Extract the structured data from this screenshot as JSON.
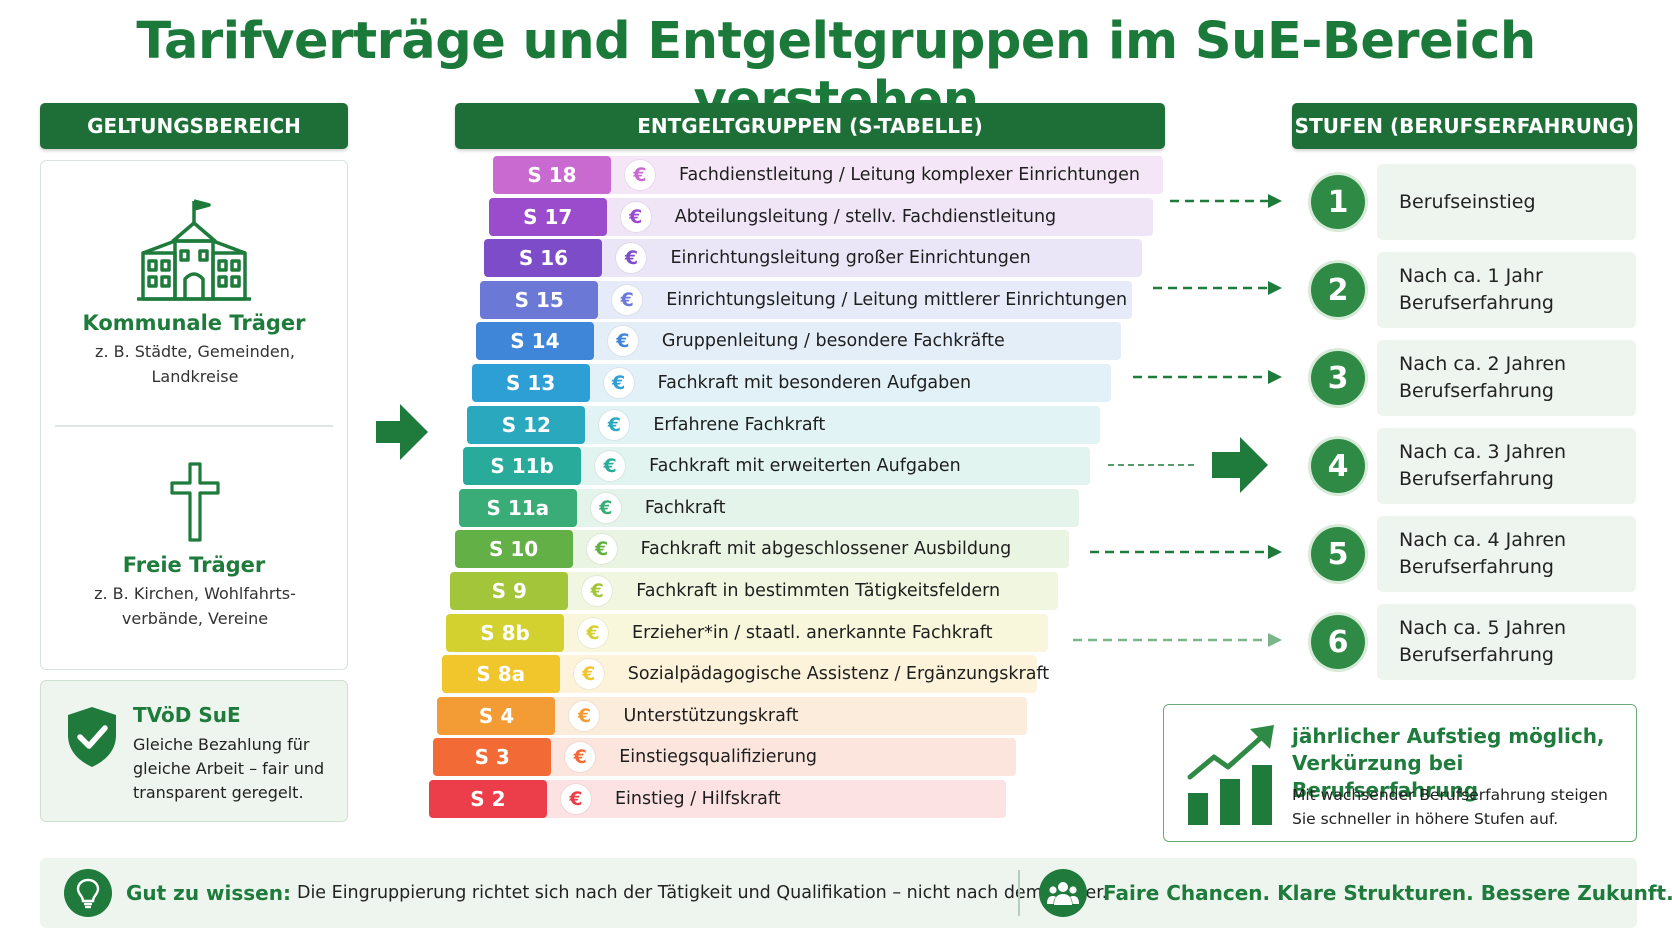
{
  "title": "Tarifverträge und Entgeltgruppen im SuE-Bereich verstehen",
  "headers": {
    "geltung": "GELTUNGSBEREICH",
    "entgelt": "ENTGELTGRUPPEN (S-TABELLE)",
    "stufen": "STUFEN (BERUFSERFAHRUNG)"
  },
  "traeger": [
    {
      "title": "Kommunale Träger",
      "line1": "z. B. Städte, Gemeinden,",
      "line2": "Landkreise",
      "icon": "city-hall-icon"
    },
    {
      "title": "Freie Träger",
      "line1": "z. B. Kirchen, Wohlfahrts-",
      "line2": "verbände, Vereine",
      "icon": "cross-icon"
    }
  ],
  "tvod": {
    "title": "TVöD SuE",
    "line1": "Gleiche Bezahlung für",
    "line2": "gleiche Arbeit – fair und",
    "line3": "transparent geregelt.",
    "icon": "shield-check-icon"
  },
  "groups": [
    {
      "code": "S 18",
      "label": "Fachdienstleitung / Leitung komplexer Einrichtungen",
      "color": "#c86ad0",
      "tint": "#f4e6f6"
    },
    {
      "code": "S 17",
      "label": "Abteilungsleitung / stellv. Fachdienstleitung",
      "color": "#9a4ccc",
      "tint": "#efe5f7"
    },
    {
      "code": "S 16",
      "label": "Einrichtungsleitung großer Einrichtungen",
      "color": "#7d4cc8",
      "tint": "#ebe6f7"
    },
    {
      "code": "S 15",
      "label": "Einrichtungsleitung / Leitung mittlerer Einrichtungen",
      "color": "#6b78d6",
      "tint": "#e7eaf8"
    },
    {
      "code": "S 14",
      "label": "Gruppenleitung / besondere Fachkräfte",
      "color": "#3f86d8",
      "tint": "#e4eef9"
    },
    {
      "code": "S 13",
      "label": "Fachkraft mit besonderen Aufgaben",
      "color": "#2e9fd4",
      "tint": "#e2f1f8"
    },
    {
      "code": "S 12",
      "label": "Erfahrene Fachkraft",
      "color": "#2aa8bd",
      "tint": "#e1f3f4"
    },
    {
      "code": "S 11b",
      "label": "Fachkraft mit erweiterten Aufgaben",
      "color": "#28ab9b",
      "tint": "#e2f4f0"
    },
    {
      "code": "S 11a",
      "label": "Fachkraft",
      "color": "#3aac78",
      "tint": "#e4f4ea"
    },
    {
      "code": "S 10",
      "label": "Fachkraft mit abgeschlossener Ausbildung",
      "color": "#62b046",
      "tint": "#eaf4e3"
    },
    {
      "code": "S 9",
      "label": "Fachkraft in bestimmten Tätigkeitsfeldern",
      "color": "#a2c53a",
      "tint": "#f1f6e0"
    },
    {
      "code": "S 8b",
      "label": "Erzieher*in / staatl. anerkannte Fachkraft",
      "color": "#d2d130",
      "tint": "#f8f7dc"
    },
    {
      "code": "S 8a",
      "label": "Sozialpädagogische Assistenz / Ergänzungskraft",
      "color": "#f1c52c",
      "tint": "#fcf3da"
    },
    {
      "code": "S 4",
      "label": "Unterstützungskraft",
      "color": "#f39b34",
      "tint": "#fcecdc"
    },
    {
      "code": "S 3",
      "label": "Einstiegsqualifizierung",
      "color": "#f26b36",
      "tint": "#fce5dd"
    },
    {
      "code": "S 2",
      "label": "Einstieg / Hilfskraft",
      "color": "#ec3e4a",
      "tint": "#fce2e3"
    }
  ],
  "euro_symbol": "€",
  "steps": [
    {
      "num": "1",
      "line1": "Berufseinstieg",
      "line2": ""
    },
    {
      "num": "2",
      "line1": "Nach ca. 1 Jahr",
      "line2": "Berufserfahrung"
    },
    {
      "num": "3",
      "line1": "Nach ca. 2 Jahren",
      "line2": "Berufserfahrung"
    },
    {
      "num": "4",
      "line1": "Nach ca. 3 Jahren",
      "line2": "Berufserfahrung"
    },
    {
      "num": "5",
      "line1": "Nach ca. 4 Jahren",
      "line2": "Berufserfahrung"
    },
    {
      "num": "6",
      "line1": "Nach ca. 5 Jahren",
      "line2": "Berufserfahrung"
    }
  ],
  "promo": {
    "title1": "jährlicher Aufstieg möglich,",
    "title2": "Verkürzung bei Berufserfahrung",
    "text1": "Mit wachsender Berufserfahrung steigen",
    "text2": "Sie schneller in höhere Stufen auf.",
    "icon": "growth-chart-icon"
  },
  "footer": {
    "bold": "Gut zu wissen:",
    "text": "Die Eingruppierung richtet sich nach der Tätigkeit und Qualifikation – nicht nach dem Träger.",
    "slogan": "Faire Chancen. Klare Strukturen. Bessere Zukunft.",
    "left_icon": "lightbulb-icon",
    "right_icon": "people-icon"
  },
  "colors": {
    "primary": "#1e6e38",
    "accent": "#2e8a45",
    "light": "#eef5ee"
  }
}
